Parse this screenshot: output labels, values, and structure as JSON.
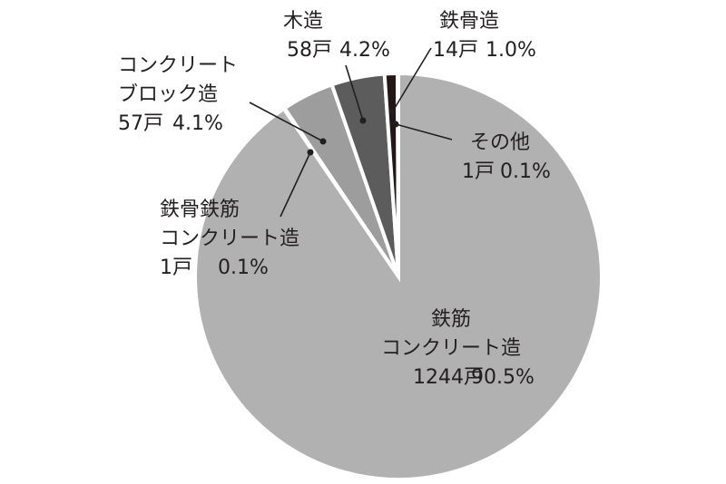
{
  "chart_data": {
    "type": "pie",
    "title": "",
    "unit": "戸",
    "colors": [
      "#b1b1b1",
      "#b1b1b1",
      "#9d9d9d",
      "#5c5c5c",
      "#231815",
      "#b1b1b1"
    ],
    "slices": [
      {
        "id": "rc",
        "lines": [
          "鉄筋",
          "コンクリート造"
        ],
        "count": 1244,
        "count_text": "1244戸",
        "pct": 90.5,
        "pct_text": "90.5%"
      },
      {
        "id": "src",
        "lines": [
          "鉄骨鉄筋",
          "コンクリート造"
        ],
        "count": 1,
        "count_text": "1戸",
        "pct": 0.1,
        "pct_text": "0.1%"
      },
      {
        "id": "cb",
        "lines": [
          "コンクリート",
          "ブロック造"
        ],
        "count": 57,
        "count_text": "57戸",
        "pct": 4.1,
        "pct_text": "4.1%"
      },
      {
        "id": "wood",
        "lines": [
          "木造"
        ],
        "count": 58,
        "count_text": "58戸",
        "pct": 4.2,
        "pct_text": "4.2%"
      },
      {
        "id": "steel",
        "lines": [
          "鉄骨造"
        ],
        "count": 14,
        "count_text": "14戸",
        "pct": 1.0,
        "pct_text": "1.0%"
      },
      {
        "id": "other",
        "lines": [
          "その他"
        ],
        "count": 1,
        "count_text": "1戸",
        "pct": 0.1,
        "pct_text": "0.1%"
      }
    ]
  }
}
